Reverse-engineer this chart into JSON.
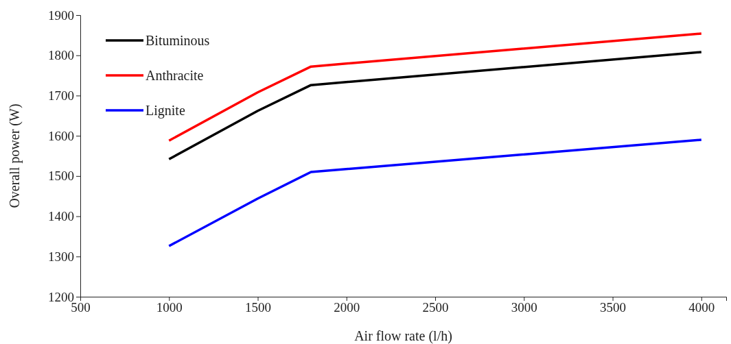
{
  "chart_data": {
    "type": "line",
    "xlabel": "Air flow rate (l/h)",
    "ylabel": "Overall power (W)",
    "x": [
      1000,
      1500,
      1800,
      4000
    ],
    "series": [
      {
        "name": "Bituminous",
        "color": "#000000",
        "values": [
          1542,
          1662,
          1726,
          1808
        ]
      },
      {
        "name": "Anthracite",
        "color": "#ff0000",
        "values": [
          1588,
          1708,
          1772,
          1854
        ]
      },
      {
        "name": "Lignite",
        "color": "#0000ff",
        "values": [
          1326,
          1444,
          1510,
          1590
        ]
      }
    ],
    "xlim": [
      500,
      4140
    ],
    "xticks": [
      500,
      1000,
      1500,
      2000,
      2500,
      3000,
      3500,
      4000
    ],
    "ylim": [
      1200,
      1900
    ],
    "yticks": [
      1200,
      1300,
      1400,
      1500,
      1600,
      1700,
      1800,
      1900
    ],
    "grid": false,
    "legend": "top left",
    "marker": "none",
    "line_style": "solid"
  }
}
